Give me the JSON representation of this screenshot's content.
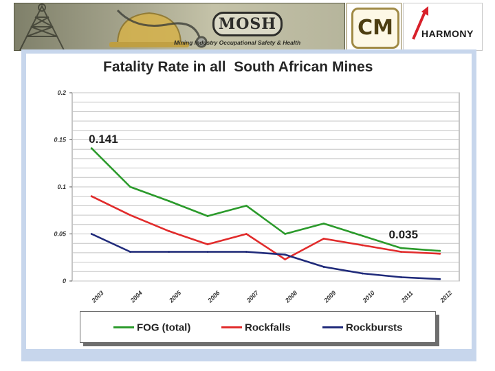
{
  "header": {
    "mosh_logo_text": "MOSH",
    "mosh_tagline": "Mining Industry Occupational Safety & Health",
    "cm_logo_text": "CM",
    "harmony_text": "HARMONY"
  },
  "chart_data": {
    "type": "line",
    "title": "Fatality Rate in all  South African Mines",
    "categories": [
      "2003",
      "2004",
      "2005",
      "2006",
      "2007",
      "2008",
      "2009",
      "2010",
      "2011",
      "2012"
    ],
    "ylim": [
      0,
      0.2
    ],
    "yticks": [
      "0",
      "0.05",
      "0.1",
      "0.15",
      "0.2"
    ],
    "ytick_values": [
      0,
      0.05,
      0.1,
      0.15,
      0.2
    ],
    "grid": true,
    "legend_position": "bottom",
    "series": [
      {
        "name": "FOG (total)",
        "color": "#2b9a2b",
        "values": [
          0.141,
          0.1,
          0.085,
          0.069,
          0.08,
          0.05,
          0.061,
          0.048,
          0.035,
          0.032
        ]
      },
      {
        "name": "Rockfalls",
        "color": "#e12b2b",
        "values": [
          0.09,
          0.07,
          0.053,
          0.039,
          0.05,
          0.023,
          0.045,
          0.038,
          0.031,
          0.029
        ]
      },
      {
        "name": "Rockbursts",
        "color": "#1f2a7a",
        "values": [
          0.05,
          0.031,
          0.031,
          0.031,
          0.031,
          0.028,
          0.015,
          0.008,
          0.004,
          0.002
        ]
      }
    ],
    "annotations": [
      {
        "text": "0.141",
        "series": 0,
        "index": 0
      },
      {
        "text": "0.035",
        "series": 0,
        "index": 8
      }
    ]
  }
}
